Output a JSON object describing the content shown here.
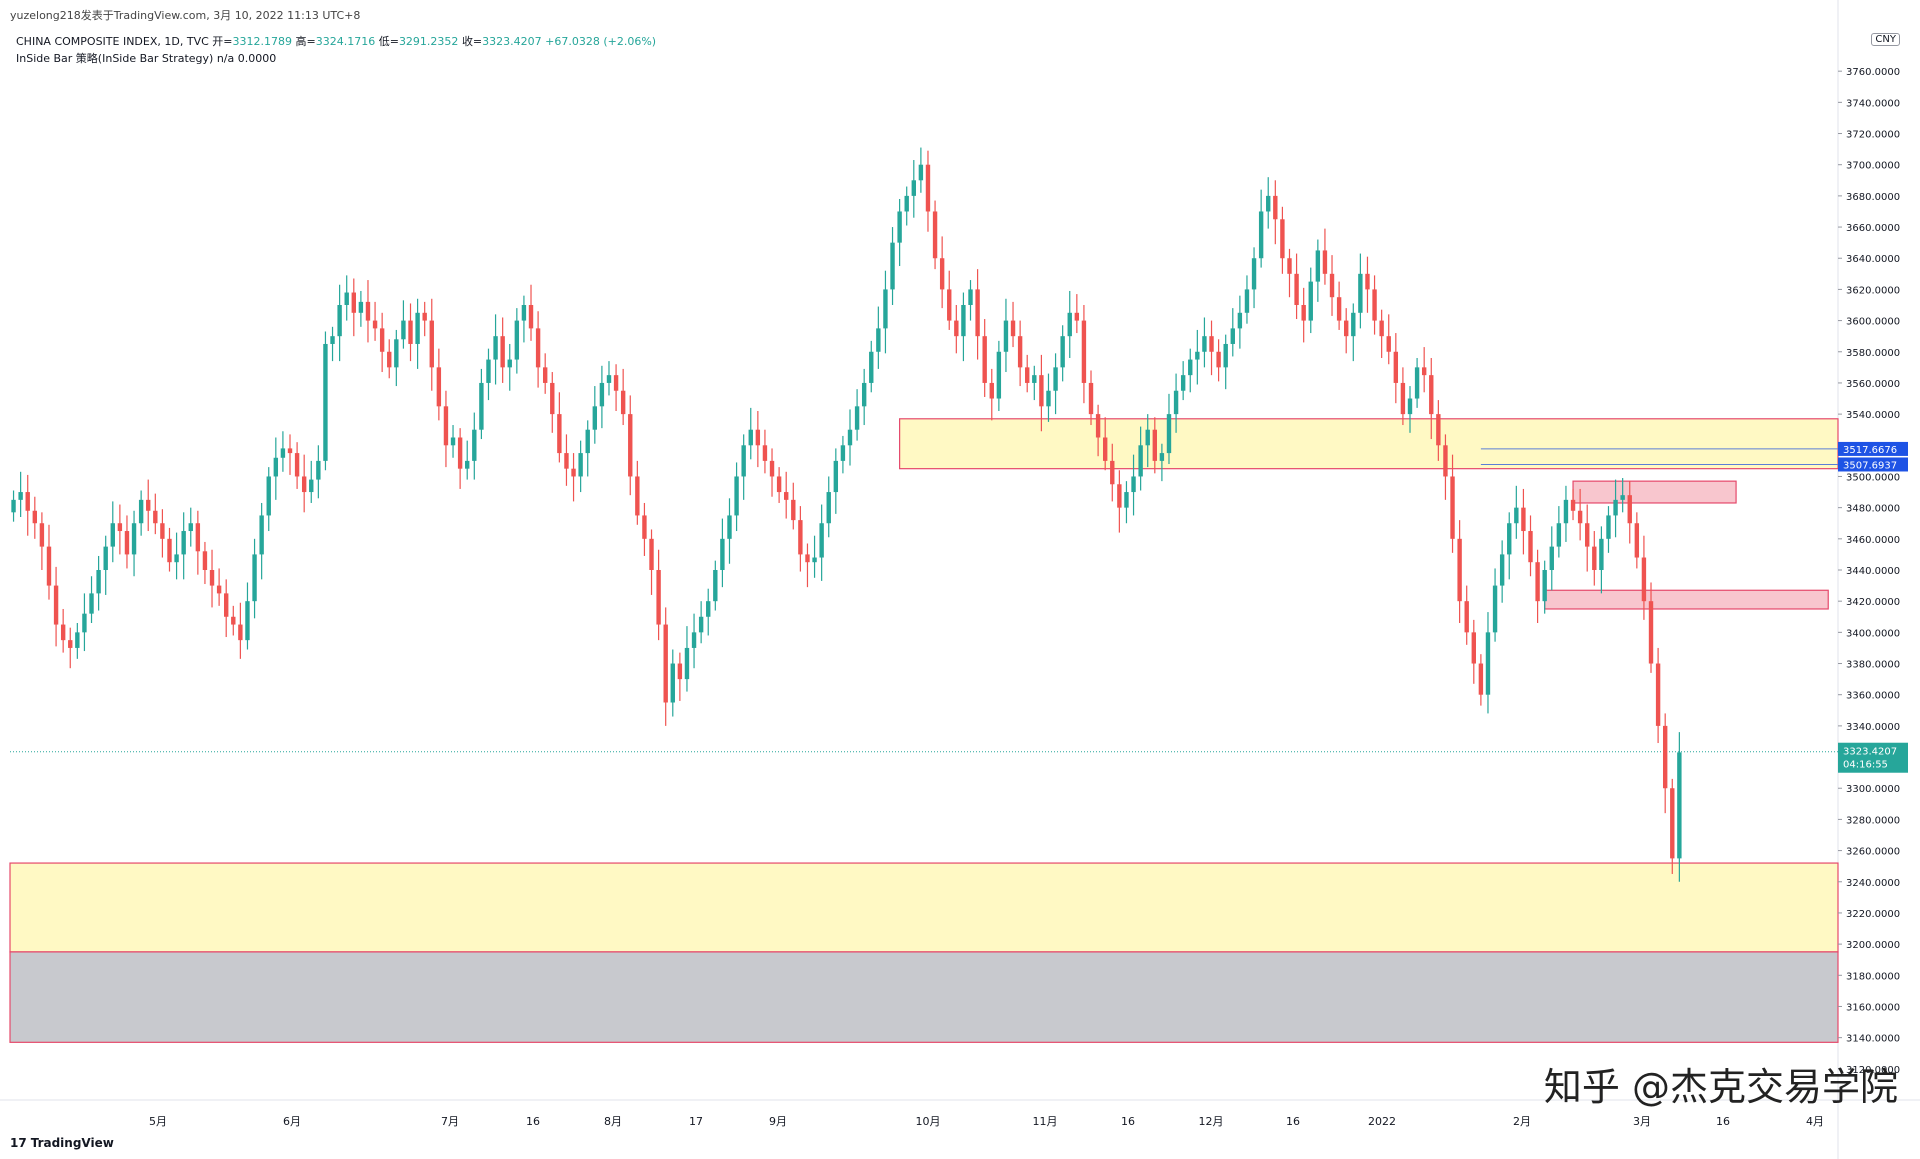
{
  "header": {
    "attribution": "yuzelong218发表于TradingView.com, 3月 10, 2022 11:13 UTC+8",
    "symbol_info": "CHINA COMPOSITE INDEX, 1D, TVC",
    "ohlc": [
      {
        "label": "开=",
        "value": "3312.1789"
      },
      {
        "label": "高=",
        "value": "3324.1716"
      },
      {
        "label": "低=",
        "value": "3291.2352"
      },
      {
        "label": "收=",
        "value": "3323.4207"
      }
    ],
    "change": "+67.0328 (+2.06%)",
    "strategy": "InSide Bar 策略(InSide Bar Strategy)  n/a  0.0000",
    "currency": "CNY"
  },
  "footer": {
    "brand": "TradingView",
    "brand_mark": "17",
    "watermark": "知乎 @杰克交易学院"
  },
  "colors": {
    "up": "#26a69a",
    "down": "#ef5350",
    "zone_fill": "#fff9c4",
    "zone_border": "#e5496b",
    "gray_zone": "#c8c9ce",
    "pink_zone": "#f8c6ce",
    "label_blue": "#1e53e5",
    "price_label": "#26a69a"
  },
  "chart_data": {
    "type": "candlestick",
    "title": "CHINA COMPOSITE INDEX, 1D, TVC",
    "y_axis": {
      "min": 3100,
      "max": 3780,
      "ticks": [
        3120,
        3140,
        3160,
        3180,
        3200,
        3220,
        3240,
        3260,
        3280,
        3300,
        3340,
        3360,
        3380,
        3400,
        3420,
        3440,
        3460,
        3480,
        3500,
        3520,
        3540,
        3560,
        3580,
        3600,
        3620,
        3640,
        3660,
        3680,
        3700,
        3720,
        3740,
        3760
      ]
    },
    "x_axis": {
      "labels": [
        "5月",
        "6月",
        "7月",
        "16",
        "8月",
        "17",
        "9月",
        "10月",
        "11月",
        "16",
        "12月",
        "16",
        "2022",
        "2月",
        "3月",
        "16",
        "4月"
      ]
    },
    "last_price": {
      "value": "3323.4207",
      "countdown": "04:16:55"
    },
    "price_labels": [
      {
        "value": "3517.6676"
      },
      {
        "value": "3507.6937"
      }
    ],
    "zones": [
      {
        "name": "upper-supply-zone",
        "y_top": 3537,
        "y_bottom": 3505,
        "from": "2021-09-08",
        "to": "end"
      },
      {
        "name": "lower-demand-zone",
        "y_top": 3252,
        "y_bottom": 3195,
        "from": "start",
        "to": "end"
      },
      {
        "name": "gray-zone",
        "y_top": 3195,
        "y_bottom": 3137,
        "from": "start",
        "to": "end"
      },
      {
        "name": "pink-resistance-box",
        "y_top": 3497,
        "y_bottom": 3483,
        "from": "2022-02-10",
        "to": "2022-03-08"
      },
      {
        "name": "pink-support-box",
        "y_top": 3427,
        "y_bottom": 3415,
        "from": "2022-02-07",
        "to": "2022-03-10"
      }
    ],
    "candles_close": [
      3485,
      3490,
      3478,
      3470,
      3455,
      3430,
      3405,
      3395,
      3390,
      3400,
      3412,
      3425,
      3440,
      3455,
      3470,
      3465,
      3450,
      3470,
      3485,
      3478,
      3470,
      3460,
      3445,
      3450,
      3465,
      3470,
      3452,
      3440,
      3430,
      3425,
      3410,
      3405,
      3395,
      3420,
      3450,
      3475,
      3500,
      3512,
      3518,
      3515,
      3500,
      3490,
      3498,
      3510,
      3585,
      3590,
      3610,
      3618,
      3605,
      3612,
      3600,
      3595,
      3580,
      3570,
      3588,
      3600,
      3585,
      3605,
      3600,
      3570,
      3545,
      3520,
      3525,
      3505,
      3510,
      3530,
      3560,
      3575,
      3590,
      3570,
      3575,
      3600,
      3610,
      3595,
      3570,
      3560,
      3540,
      3515,
      3505,
      3500,
      3515,
      3530,
      3545,
      3560,
      3565,
      3555,
      3540,
      3500,
      3475,
      3460,
      3440,
      3405,
      3355,
      3380,
      3370,
      3390,
      3400,
      3410,
      3420,
      3440,
      3460,
      3475,
      3500,
      3520,
      3530,
      3520,
      3510,
      3500,
      3490,
      3485,
      3472,
      3450,
      3445,
      3448,
      3470,
      3490,
      3510,
      3520,
      3530,
      3545,
      3560,
      3580,
      3595,
      3620,
      3650,
      3670,
      3680,
      3690,
      3700,
      3670,
      3640,
      3620,
      3600,
      3590,
      3610,
      3620,
      3590,
      3560,
      3550,
      3580,
      3600,
      3590,
      3570,
      3560,
      3565,
      3545,
      3555,
      3570,
      3590,
      3605,
      3600,
      3560,
      3540,
      3525,
      3510,
      3495,
      3480,
      3490,
      3500,
      3520,
      3530,
      3510,
      3515,
      3540,
      3555,
      3565,
      3575,
      3580,
      3590,
      3580,
      3570,
      3585,
      3595,
      3605,
      3620,
      3640,
      3670,
      3680,
      3665,
      3640,
      3630,
      3610,
      3600,
      3625,
      3645,
      3630,
      3615,
      3600,
      3590,
      3605,
      3630,
      3620,
      3600,
      3590,
      3580,
      3560,
      3540,
      3550,
      3570,
      3565,
      3540,
      3520,
      3500,
      3460,
      3420,
      3400,
      3380,
      3360,
      3400,
      3430,
      3450,
      3470,
      3480,
      3465,
      3445,
      3420,
      3440,
      3455,
      3470,
      3485,
      3478,
      3470,
      3455,
      3440,
      3460,
      3475,
      3485,
      3488,
      3470,
      3448,
      3420,
      3380,
      3340,
      3300,
      3255,
      3323
    ]
  }
}
